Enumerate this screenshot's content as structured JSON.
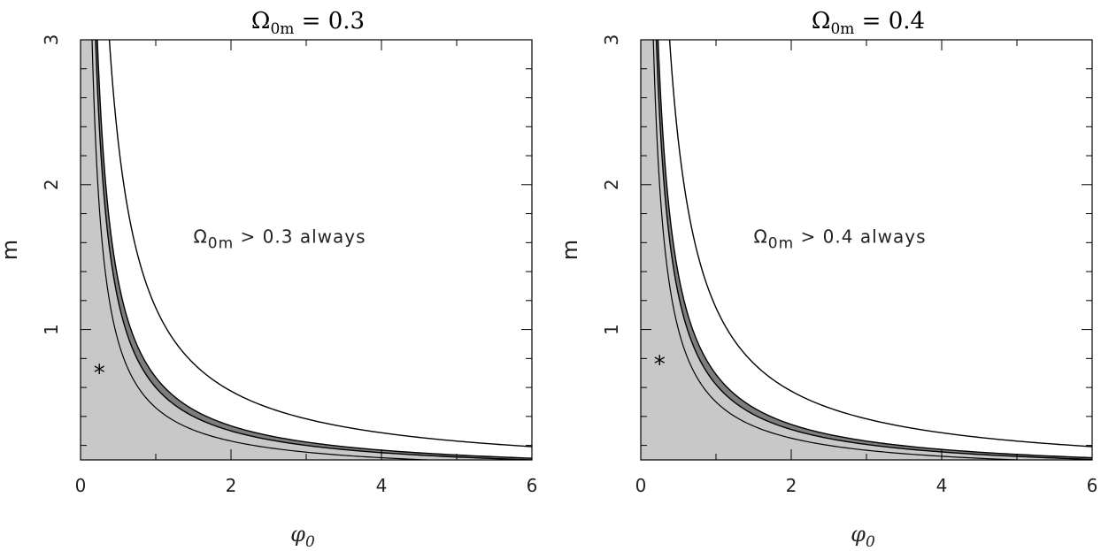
{
  "chart_data": [
    {
      "type": "area",
      "title": "Ω0m = 0.3",
      "title_main": "Ω",
      "title_sub": "0m",
      "title_rest": " = 0.3",
      "xlabel_main": "φ",
      "xlabel_sub": "0",
      "ylabel": "m",
      "xlim": [
        0,
        6
      ],
      "ylim": [
        0.1,
        3
      ],
      "xticks": [
        0,
        2,
        4,
        6
      ],
      "yticks": [
        1,
        2,
        3
      ],
      "annotation_main": "Ω",
      "annotation_sub": "0m",
      "annotation_rest": " > 0.3 always",
      "annotation_pos": [
        1.5,
        1.6
      ],
      "best_fit": {
        "x": 0.25,
        "y": 0.72,
        "symbol": "*"
      },
      "curves": {
        "inner_k": 0.46,
        "band_inner_k": 0.6,
        "band_outer_k": 0.67,
        "outer_k": 1.15
      },
      "fill_colors": {
        "light": "#c8c8c8",
        "dark": "#7d7d7d",
        "edge": "#000000"
      }
    },
    {
      "type": "area",
      "title": "Ω0m = 0.4",
      "title_main": "Ω",
      "title_sub": "0m",
      "title_rest": " = 0.4",
      "xlabel_main": "φ",
      "xlabel_sub": "0",
      "ylabel": "m",
      "xlim": [
        0,
        6
      ],
      "ylim": [
        0.1,
        3
      ],
      "xticks": [
        0,
        2,
        4,
        6
      ],
      "yticks": [
        1,
        2,
        3
      ],
      "annotation_main": "Ω",
      "annotation_sub": "0m",
      "annotation_rest": " > 0.4 always",
      "annotation_pos": [
        1.5,
        1.6
      ],
      "best_fit": {
        "x": 0.25,
        "y": 0.78,
        "symbol": "*"
      },
      "curves": {
        "inner_k": 0.5,
        "band_inner_k": 0.62,
        "band_outer_k": 0.69,
        "outer_k": 1.15
      },
      "fill_colors": {
        "light": "#c8c8c8",
        "dark": "#7d7d7d",
        "edge": "#000000"
      }
    }
  ]
}
